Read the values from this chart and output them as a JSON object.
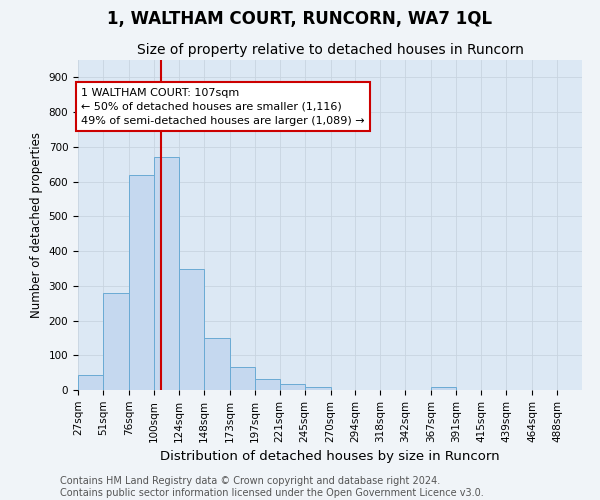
{
  "title": "1, WALTHAM COURT, RUNCORN, WA7 1QL",
  "subtitle": "Size of property relative to detached houses in Runcorn",
  "xlabel": "Distribution of detached houses by size in Runcorn",
  "ylabel": "Number of detached properties",
  "bar_edges": [
    27,
    51,
    76,
    100,
    124,
    148,
    173,
    197,
    221,
    245,
    270,
    294,
    318,
    342,
    367,
    391,
    415,
    439,
    464,
    488,
    512
  ],
  "bar_heights": [
    43,
    280,
    620,
    670,
    347,
    150,
    65,
    32,
    18,
    10,
    0,
    0,
    0,
    0,
    10,
    0,
    0,
    0,
    0,
    0
  ],
  "bar_color": "#c5d8ef",
  "bar_edgecolor": "#6aaad4",
  "property_size": 107,
  "annotation_label": "1 WALTHAM COURT: 107sqm",
  "annotation_line1": "← 50% of detached houses are smaller (1,116)",
  "annotation_line2": "49% of semi-detached houses are larger (1,089) →",
  "annotation_box_color": "white",
  "annotation_border_color": "#cc0000",
  "vline_color": "#cc0000",
  "ylim": [
    0,
    950
  ],
  "yticks": [
    0,
    100,
    200,
    300,
    400,
    500,
    600,
    700,
    800,
    900
  ],
  "grid_color": "#c8d4e0",
  "bg_color": "#f0f4f8",
  "plot_bg_color": "#dce8f4",
  "footer_line1": "Contains HM Land Registry data © Crown copyright and database right 2024.",
  "footer_line2": "Contains public sector information licensed under the Open Government Licence v3.0.",
  "title_fontsize": 12,
  "subtitle_fontsize": 10,
  "xlabel_fontsize": 9.5,
  "ylabel_fontsize": 8.5,
  "tick_fontsize": 7.5,
  "annot_fontsize": 8,
  "footer_fontsize": 7
}
